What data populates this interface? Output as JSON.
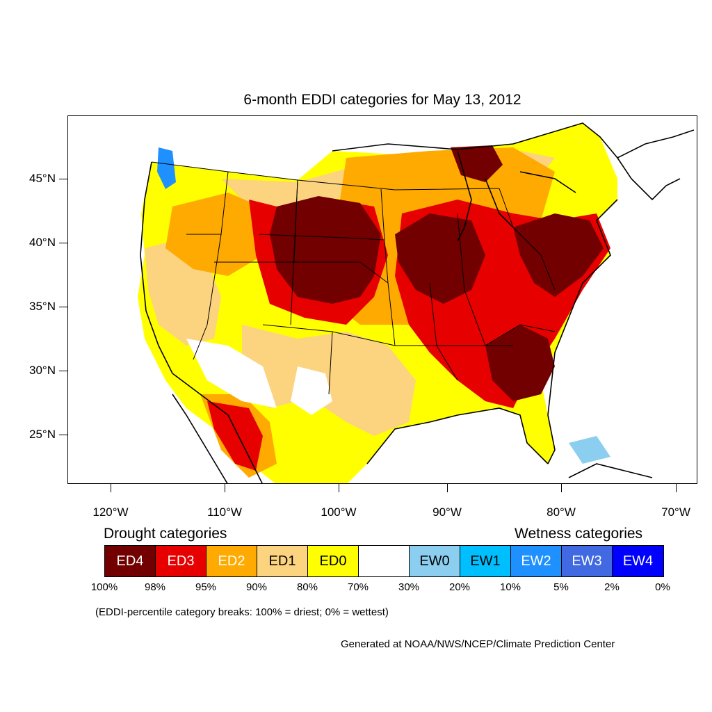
{
  "title": "6-month EDDI categories for May 13, 2012",
  "latitude_labels": [
    "45°N",
    "40°N",
    "35°N",
    "30°N",
    "25°N"
  ],
  "longitude_labels": [
    "120°W",
    "110°W",
    "100°W",
    "90°W",
    "80°W",
    "70°W"
  ],
  "legend": {
    "drought_heading": "Drought categories",
    "wetness_heading": "Wetness categories",
    "categories": [
      {
        "label": "ED4",
        "color": "#730000",
        "text_color": "#ffffff"
      },
      {
        "label": "ED3",
        "color": "#e60000",
        "text_color": "#ffffff"
      },
      {
        "label": "ED2",
        "color": "#ffaa00",
        "text_color": "#ffffff"
      },
      {
        "label": "ED1",
        "color": "#fcd37f",
        "text_color": "#000000"
      },
      {
        "label": "ED0",
        "color": "#ffff00",
        "text_color": "#000000"
      },
      {
        "label": "",
        "color": "#ffffff",
        "text_color": "#000000"
      },
      {
        "label": "EW0",
        "color": "#8ccef0",
        "text_color": "#000000"
      },
      {
        "label": "EW1",
        "color": "#00bfff",
        "text_color": "#000000"
      },
      {
        "label": "EW2",
        "color": "#1e90ff",
        "text_color": "#ffffff"
      },
      {
        "label": "EW3",
        "color": "#4169e1",
        "text_color": "#ffffff"
      },
      {
        "label": "EW4",
        "color": "#0000ff",
        "text_color": "#ffffff"
      }
    ],
    "breaks": [
      "100%",
      "98%",
      "95%",
      "90%",
      "80%",
      "70%",
      "30%",
      "20%",
      "10%",
      "5%",
      "2%",
      "0%"
    ]
  },
  "note": "(EDDI-percentile category breaks: 100% = driest; 0% = wettest)",
  "credit": "Generated at NOAA/NWS/NCEP/Climate Prediction Center"
}
